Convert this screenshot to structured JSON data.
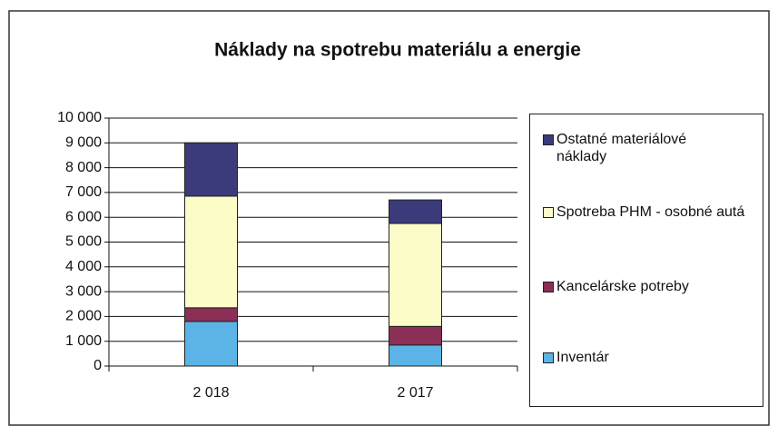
{
  "chart_data": {
    "type": "stacked-bar",
    "title": "Náklady na spotrebu materiálu a energie",
    "categories": [
      "2 018",
      "2 017"
    ],
    "series": [
      {
        "name": "Inventár",
        "color": "#5bb4e5",
        "values": [
          1800,
          850
        ]
      },
      {
        "name": "Kancelárske potreby",
        "color": "#8b2f56",
        "values": [
          550,
          750
        ]
      },
      {
        "name": "Spotreba PHM - osobné autá",
        "color": "#fcfcc8",
        "values": [
          4500,
          4150
        ]
      },
      {
        "name": "Ostatné materiálové náklady",
        "color": "#3b3a7a",
        "values": [
          2150,
          950
        ]
      }
    ],
    "ylim": [
      0,
      10000
    ],
    "yticks": [
      0,
      {
        "value": 1000,
        "label": "1 000"
      },
      {
        "value": 2000,
        "label": "2 000"
      },
      {
        "value": 3000,
        "label": "3 000"
      },
      {
        "value": 4000,
        "label": "4 000"
      },
      {
        "value": 5000,
        "label": "5 000"
      },
      {
        "value": 6000,
        "label": "6 000"
      },
      {
        "value": 7000,
        "label": "7 000"
      },
      {
        "value": 8000,
        "label": "8 000"
      },
      {
        "value": 9000,
        "label": "9 000"
      },
      {
        "value": 10000,
        "label": "10 000"
      }
    ],
    "grid": true,
    "legend": "right"
  }
}
